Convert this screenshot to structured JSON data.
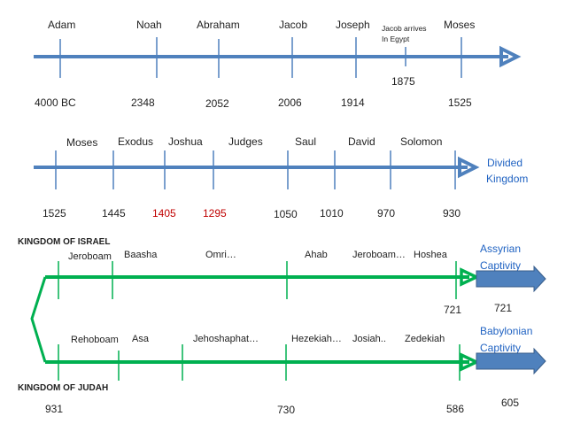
{
  "colors": {
    "blue_line": "#4F81BD",
    "green_line": "#00B050",
    "text": "#1F1F1F",
    "label_blue": "#1F62C2",
    "red": "#C00000",
    "arrow_box": "#4F81BD",
    "arrow_box_edge": "#385D8A"
  },
  "timeline1": {
    "names": [
      "Adam",
      "Noah",
      "Abraham",
      "Jacob",
      "Joseph",
      "Moses"
    ],
    "egypt_note": [
      "Jacob arrives",
      "In Egypt"
    ],
    "years": [
      "4000 BC",
      "2348",
      "2052",
      "2006",
      "1914",
      "1875",
      "1525"
    ]
  },
  "timeline2": {
    "names": [
      "Moses",
      "Exodus",
      "Joshua",
      "Judges",
      "Saul",
      "David",
      "Solomon"
    ],
    "years": [
      "1525",
      "1445",
      "1405",
      "1295",
      "1050",
      "1010",
      "970",
      "930"
    ],
    "red_years": [
      "1405",
      "1295"
    ],
    "end_label": [
      "Divided",
      "Kingdom"
    ]
  },
  "israel": {
    "title": "KINGDOM OF ISRAEL",
    "kings": [
      "Jeroboam",
      "Baasha",
      "Omri…",
      "Ahab",
      "Jeroboam…",
      "Hoshea"
    ],
    "end_year": "721",
    "box_year": "721",
    "end_label": [
      "Assyrian",
      "Captivity"
    ]
  },
  "judah": {
    "title": "KINGDOM OF JUDAH",
    "kings": [
      "Rehoboam",
      "Asa",
      "Jehoshaphat…",
      "Hezekiah…",
      "Josiah..",
      "Zedekiah"
    ],
    "years": [
      "931",
      "730",
      "586"
    ],
    "box_year": "605",
    "end_label": [
      "Babylonian",
      "Captivity"
    ]
  }
}
